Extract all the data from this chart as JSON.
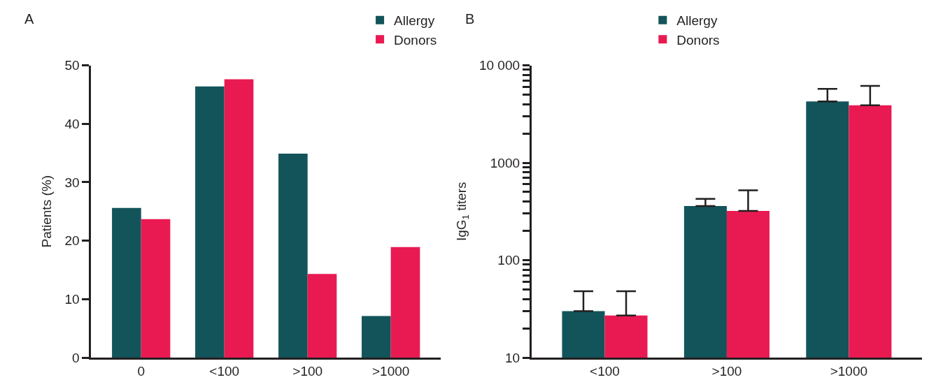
{
  "chart_data": [
    {
      "type": "bar",
      "title": "A",
      "ylabel": "Patients (%)",
      "categories": [
        "0",
        "<100",
        ">100",
        ">1000"
      ],
      "series": [
        {
          "name": "Allergy",
          "color": "#13545a",
          "values": [
            25.6,
            46.4,
            34.9,
            7.1
          ]
        },
        {
          "name": "Donors",
          "color": "#e91a52",
          "values": [
            23.7,
            47.6,
            14.3,
            18.9
          ]
        }
      ],
      "ylim": [
        0,
        50
      ],
      "yticks": [
        0,
        10,
        20,
        30,
        40,
        50
      ],
      "legend": "top right"
    },
    {
      "type": "bar",
      "title": "B",
      "ylabel": "IgG$_{1}$ titers",
      "categories": [
        "<100",
        ">100",
        ">1000"
      ],
      "series": [
        {
          "name": "Allergy",
          "color": "#13545a",
          "values": [
            30,
            360,
            4250
          ],
          "errors": [
            [
              30,
              48
            ],
            [
              360,
              425
            ],
            [
              4250,
              5740
            ]
          ]
        },
        {
          "name": "Donors",
          "color": "#e91a52",
          "values": [
            27,
            320,
            3890
          ],
          "errors": [
            [
              27,
              48
            ],
            [
              320,
              520
            ],
            [
              3890,
              6150
            ]
          ]
        }
      ],
      "log": "y",
      "ylim": [
        10,
        10000
      ],
      "yticks": [
        10,
        {
          "value": 20,
          "label": null
        },
        {
          "value": 30,
          "label": null
        },
        {
          "value": 40,
          "label": null
        },
        {
          "value": 50,
          "label": null
        },
        {
          "value": 60,
          "label": null
        },
        {
          "value": 70,
          "label": null
        },
        {
          "value": 80,
          "label": null
        },
        {
          "value": 90,
          "label": null
        },
        100,
        {
          "value": 200,
          "label": null
        },
        {
          "value": 300,
          "label": null
        },
        {
          "value": 400,
          "label": null
        },
        {
          "value": 500,
          "label": null
        },
        {
          "value": 600,
          "label": null
        },
        {
          "value": 700,
          "label": null
        },
        {
          "value": 800,
          "label": null
        },
        {
          "value": 900,
          "label": null
        },
        1000,
        {
          "value": 2000,
          "label": null
        },
        {
          "value": 3000,
          "label": null
        },
        {
          "value": 4000,
          "label": null
        },
        {
          "value": 5000,
          "label": null
        },
        {
          "value": 6000,
          "label": null
        },
        {
          "value": 7000,
          "label": null
        },
        {
          "value": 8000,
          "label": null
        },
        {
          "value": 9000,
          "label": null
        },
        {
          "value": 10000,
          "label": "10 000"
        }
      ],
      "legend": "top left"
    }
  ]
}
